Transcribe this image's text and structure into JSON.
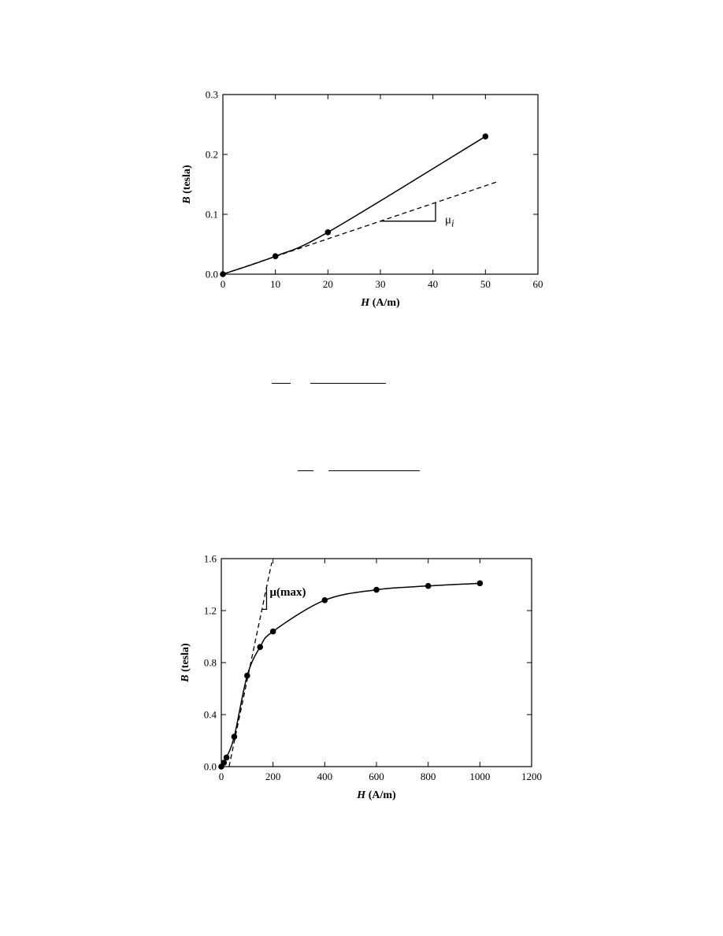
{
  "chart_data": [
    {
      "type": "line",
      "xlabel_var": "H",
      "xlabel_unit": " (A/m)",
      "ylabel_var": "B",
      "ylabel_unit": " (tesla)",
      "xlim": [
        0,
        60
      ],
      "ylim": [
        0,
        0.3
      ],
      "x_ticks": [
        0,
        10,
        20,
        30,
        40,
        50,
        60
      ],
      "y_ticks": [
        0.0,
        0.1,
        0.2,
        0.3
      ],
      "y_tick_labels": [
        "0.0",
        "0.1",
        "0.2",
        "0.3"
      ],
      "grid": false,
      "series": [
        {
          "style": "solid-with-markers",
          "x": [
            0,
            10,
            20,
            50
          ],
          "y": [
            0,
            0.03,
            0.07,
            0.23
          ]
        },
        {
          "style": "dashed",
          "x": [
            0,
            52.5
          ],
          "y": [
            0,
            0.155
          ]
        }
      ],
      "annotation": {
        "symbol": "μ",
        "subscript": "i"
      }
    },
    {
      "type": "line",
      "xlabel_var": "H",
      "xlabel_unit": " (A/m)",
      "ylabel_var": "B",
      "ylabel_unit": " (tesla)",
      "xlim": [
        0,
        1200
      ],
      "ylim": [
        0,
        1.6
      ],
      "x_ticks": [
        0,
        200,
        400,
        600,
        800,
        1000,
        1200
      ],
      "y_ticks": [
        0.0,
        0.4,
        0.8,
        1.2,
        1.6
      ],
      "y_tick_labels": [
        "0.0",
        "0.4",
        "0.8",
        "1.2",
        "1.6"
      ],
      "grid": false,
      "series": [
        {
          "style": "solid-with-markers",
          "x": [
            0,
            10,
            20,
            50,
            100,
            150,
            200,
            400,
            600,
            800,
            1000
          ],
          "y": [
            0,
            0.03,
            0.07,
            0.23,
            0.7,
            0.92,
            1.04,
            1.28,
            1.36,
            1.39,
            1.41
          ]
        },
        {
          "style": "dashed",
          "x": [
            30,
            195
          ],
          "y": [
            0,
            1.57
          ]
        }
      ],
      "annotation": {
        "text": "μ(max)"
      }
    }
  ]
}
